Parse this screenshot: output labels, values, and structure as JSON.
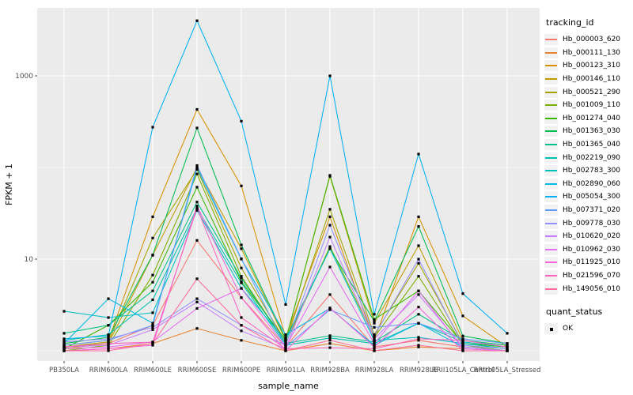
{
  "window": {
    "background": "#FFFFFF"
  },
  "chart_data": {
    "type": "line",
    "title": "",
    "xlabel": "sample_name",
    "ylabel": "FPKM + 1",
    "x_categories": [
      "PB350LA",
      "RRIM600LA",
      "RRIM600LE",
      "RRIM600SE",
      "RRIM600PE",
      "RRIM901LA",
      "RRIM928BA",
      "RRIM928LA",
      "RRIM928LE",
      "RRII105LA_Control",
      "RRII105LA_Stressed"
    ],
    "y_scale": "log10",
    "y_ticks": [
      {
        "label": "10",
        "value": 10
      },
      {
        "label": "1000",
        "value": 1000
      }
    ],
    "y_minor_gridlines": [
      1,
      100
    ],
    "ylim": [
      0.77,
      5500
    ],
    "grid": "on",
    "legend_position": "right",
    "panel_background": "#EBEBEB",
    "gridline_color": "#FFFFFF",
    "tick_text_color": "#4D4D4D",
    "marker": {
      "shape": "square",
      "color": "#000000",
      "size": 3.2
    },
    "legend": {
      "title": "tracking_id",
      "quant_status": {
        "title": "quant_status",
        "items": [
          {
            "label": "OK"
          }
        ]
      }
    },
    "series": [
      {
        "name": "Hb_000003_620",
        "color": "#F8766D",
        "values": [
          1.1,
          1.2,
          1.9,
          16,
          3.8,
          1.1,
          4.1,
          1.1,
          1.3,
          1.1,
          1.0
        ]
      },
      {
        "name": "Hb_000111_130",
        "color": "#EA8331",
        "values": [
          1.0,
          1.05,
          1.2,
          1.75,
          1.3,
          1.0,
          1.2,
          1.0,
          1.1,
          1.05,
          1.0
        ]
      },
      {
        "name": "Hb_000123_310",
        "color": "#D89000",
        "values": [
          1.15,
          1.3,
          29,
          430,
          63,
          1.4,
          29,
          1.3,
          29,
          2.4,
          1.1
        ]
      },
      {
        "name": "Hb_000146_110",
        "color": "#C09B00",
        "values": [
          1.05,
          1.2,
          11,
          100,
          13,
          1.3,
          80,
          2.0,
          14,
          1.3,
          1.15
        ]
      },
      {
        "name": "Hb_000521_290",
        "color": "#A3A500",
        "values": [
          1.1,
          1.25,
          17,
          95,
          8.0,
          1.25,
          35,
          1.5,
          9.0,
          1.2,
          1.05
        ]
      },
      {
        "name": "Hb_001009_110",
        "color": "#7CAE00",
        "values": [
          1.0,
          1.15,
          6.7,
          85,
          6.5,
          1.2,
          13.7,
          1.4,
          6.5,
          1.15,
          1.0
        ]
      },
      {
        "name": "Hb_001274_040",
        "color": "#39B600",
        "values": [
          1.05,
          1.9,
          5.6,
          61,
          5.7,
          1.3,
          82,
          2.2,
          4.5,
          1.2,
          1.1
        ]
      },
      {
        "name": "Hb_001363_030",
        "color": "#00BB4E",
        "values": [
          1.2,
          1.4,
          11.1,
          270,
          14.3,
          1.35,
          13,
          2.1,
          22.7,
          1.45,
          1.2
        ]
      },
      {
        "name": "Hb_001365_040",
        "color": "#00C087",
        "values": [
          1.55,
          1.9,
          4.5,
          42,
          6.2,
          1.2,
          1.46,
          1.25,
          2.5,
          1.3,
          1.15
        ]
      },
      {
        "name": "Hb_002219_090",
        "color": "#00C0B2",
        "values": [
          1.3,
          1.5,
          3.6,
          36,
          5.5,
          1.15,
          1.38,
          1.2,
          2.0,
          1.25,
          1.1
        ]
      },
      {
        "name": "Hb_002783_300",
        "color": "#00BFC4",
        "values": [
          2.7,
          2.3,
          2.6,
          34,
          4.8,
          1.3,
          13.0,
          1.3,
          1.4,
          1.2,
          1.05
        ]
      },
      {
        "name": "Hb_002890_060",
        "color": "#00B8E7",
        "values": [
          1.2,
          3.7,
          2.0,
          98,
          10.0,
          1.5,
          2.9,
          1.15,
          2.0,
          1.1,
          1.0
        ]
      },
      {
        "name": "Hb_005054_300",
        "color": "#00B0F6",
        "values": [
          1.35,
          1.45,
          275,
          4000,
          320,
          3.2,
          1000,
          2.5,
          140,
          4.2,
          1.55
        ]
      },
      {
        "name": "Hb_007371_020",
        "color": "#619CFF",
        "values": [
          1.15,
          1.3,
          1.9,
          105,
          10.1,
          1.1,
          2.8,
          1.8,
          2.0,
          1.35,
          1.2
        ]
      },
      {
        "name": "Hb_009778_030",
        "color": "#9590FF",
        "values": [
          1.25,
          1.35,
          1.8,
          3.7,
          1.9,
          1.15,
          23.5,
          1.45,
          10.0,
          1.15,
          1.05
        ]
      },
      {
        "name": "Hb_010620_020",
        "color": "#C77CFF",
        "values": [
          1.1,
          1.15,
          1.7,
          3.4,
          1.65,
          1.05,
          17.4,
          1.35,
          4.1,
          1.1,
          1.0
        ]
      },
      {
        "name": "Hb_010962_030",
        "color": "#E76BF3",
        "values": [
          1.05,
          1.1,
          1.25,
          2.9,
          4.8,
          1.1,
          8.2,
          1.2,
          4.5,
          1.05,
          1.0
        ]
      },
      {
        "name": "Hb_011925_010",
        "color": "#FA62DB",
        "values": [
          1.0,
          1.05,
          1.15,
          38,
          3.8,
          1.0,
          2.93,
          1.1,
          3.0,
          1.0,
          1.0
        ]
      },
      {
        "name": "Hb_021596_070",
        "color": "#FF62BC",
        "values": [
          1.1,
          1.2,
          1.24,
          36,
          2.3,
          1.05,
          1.08,
          1.05,
          1.35,
          1.3,
          1.1
        ]
      },
      {
        "name": "Hb_149056_010",
        "color": "#FF6A98",
        "values": [
          1.0,
          1.0,
          1.2,
          6.1,
          1.9,
          1.0,
          1.3,
          1.0,
          1.15,
          1.0,
          1.0
        ]
      }
    ]
  }
}
